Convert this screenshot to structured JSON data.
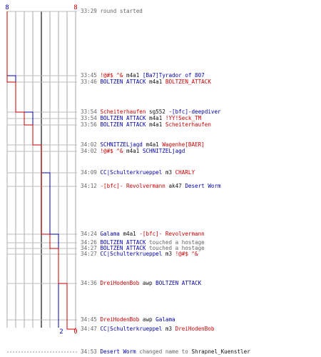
{
  "colors": {
    "blue": "#0000aa",
    "red": "#cc0000",
    "gray": "#666666",
    "dark": "#111111",
    "grid": "#aaaaaa"
  },
  "chart_data": {
    "type": "line",
    "x_unit": "mm:ss",
    "series": [
      {
        "color": "#0000aa",
        "start_label": "8",
        "end_label": "2",
        "points": [
          [
            "33:29",
            8
          ],
          [
            "33:45",
            7
          ],
          [
            "33:54",
            6
          ],
          [
            "33:54",
            5
          ],
          [
            "34:02",
            4
          ],
          [
            "34:09",
            3
          ],
          [
            "34:24",
            2
          ]
        ]
      },
      {
        "color": "#cc0000",
        "start_label": "8",
        "end_label": "0",
        "points": [
          [
            "33:29",
            8
          ],
          [
            "33:46",
            7
          ],
          [
            "33:54",
            6
          ],
          [
            "33:56",
            5
          ],
          [
            "34:02",
            4
          ],
          [
            "34:24",
            3
          ],
          [
            "34:27",
            2
          ],
          [
            "34:36",
            1
          ],
          [
            "34:47",
            0
          ]
        ]
      }
    ]
  },
  "events": [
    {
      "time": "33:29",
      "parts": [
        {
          "t": "round started",
          "c": "gray"
        }
      ]
    },
    {
      "time": "33:45",
      "parts": [
        {
          "t": "!@#$ ^&",
          "c": "red"
        },
        {
          "t": " m4a1 ",
          "c": "dark"
        },
        {
          "t": "[Ba7]Tyrador of 807",
          "c": "blue"
        }
      ]
    },
    {
      "time": "33:46",
      "parts": [
        {
          "t": "BOLTZEN ATTACK",
          "c": "blue"
        },
        {
          "t": " m4a1 ",
          "c": "dark"
        },
        {
          "t": "BOLTZEN_ATTACK",
          "c": "red"
        }
      ]
    },
    {
      "time": "33:54",
      "parts": [
        {
          "t": "Scheiterhaufen",
          "c": "red"
        },
        {
          "t": " sg552 ",
          "c": "dark"
        },
        {
          "t": "-[bfc]-deepdiver",
          "c": "blue"
        }
      ]
    },
    {
      "time": "33:54",
      "parts": [
        {
          "t": "BOLTZEN ATTACK",
          "c": "blue"
        },
        {
          "t": " m4a1 ",
          "c": "dark"
        },
        {
          "t": "!YY!Seck_TM",
          "c": "red"
        }
      ]
    },
    {
      "time": "33:56",
      "parts": [
        {
          "t": "BOLTZEN ATTACK",
          "c": "blue"
        },
        {
          "t": " m4a1 ",
          "c": "dark"
        },
        {
          "t": "Scheiterhaufen",
          "c": "red"
        }
      ]
    },
    {
      "time": "34:02",
      "parts": [
        {
          "t": "SCHNITZELjagd",
          "c": "blue"
        },
        {
          "t": " m4a1 ",
          "c": "dark"
        },
        {
          "t": "Wagenhe[BAER]",
          "c": "red"
        }
      ]
    },
    {
      "time": "34:02",
      "parts": [
        {
          "t": "!@#$ ^&",
          "c": "red"
        },
        {
          "t": " m4a1 ",
          "c": "dark"
        },
        {
          "t": "SCHNITZELjagd",
          "c": "blue"
        }
      ]
    },
    {
      "time": "34:09",
      "parts": [
        {
          "t": "CC|Schulterkrueppel",
          "c": "blue"
        },
        {
          "t": " m3 ",
          "c": "dark"
        },
        {
          "t": "CHARLY",
          "c": "red"
        }
      ]
    },
    {
      "time": "34:12",
      "parts": [
        {
          "t": "-[bfc]- Revolvermann",
          "c": "red"
        },
        {
          "t": " ak47 ",
          "c": "dark"
        },
        {
          "t": "Desert Worm",
          "c": "blue"
        }
      ]
    },
    {
      "time": "34:24",
      "parts": [
        {
          "t": "Galama",
          "c": "blue"
        },
        {
          "t": " m4a1 ",
          "c": "dark"
        },
        {
          "t": "-[bfc]- Revolvermann",
          "c": "red"
        }
      ]
    },
    {
      "time": "34:26",
      "parts": [
        {
          "t": "BOLTZEN ATTACK",
          "c": "blue"
        },
        {
          "t": " touched a hostage",
          "c": "gray"
        }
      ]
    },
    {
      "time": "34:27",
      "parts": [
        {
          "t": "BOLTZEN ATTACK",
          "c": "blue"
        },
        {
          "t": " touched a hostage",
          "c": "gray"
        }
      ]
    },
    {
      "time": "34:27",
      "parts": [
        {
          "t": "CC|Schulterkrueppel",
          "c": "blue"
        },
        {
          "t": " m3 ",
          "c": "dark"
        },
        {
          "t": "!@#$ ^&",
          "c": "red"
        }
      ]
    },
    {
      "time": "34:36",
      "parts": [
        {
          "t": "DreiHodenBob",
          "c": "red"
        },
        {
          "t": " awp ",
          "c": "dark"
        },
        {
          "t": "BOLTZEN ATTACK",
          "c": "blue"
        }
      ]
    },
    {
      "time": "34:45",
      "parts": [
        {
          "t": "DreiHodenBob",
          "c": "red"
        },
        {
          "t": " awp ",
          "c": "dark"
        },
        {
          "t": "Galama",
          "c": "blue"
        }
      ]
    },
    {
      "time": "34:47",
      "parts": [
        {
          "t": "CC|Schulterkrueppel",
          "c": "blue"
        },
        {
          "t": " m3 ",
          "c": "dark"
        },
        {
          "t": "DreiHodenBob",
          "c": "red"
        }
      ]
    },
    {
      "time": "34:53",
      "parts": [
        {
          "t": "Desert Worm",
          "c": "blue"
        },
        {
          "t": " changed name to ",
          "c": "gray"
        },
        {
          "t": "Shrapnel_Kuenstler",
          "c": "dark"
        }
      ]
    }
  ]
}
